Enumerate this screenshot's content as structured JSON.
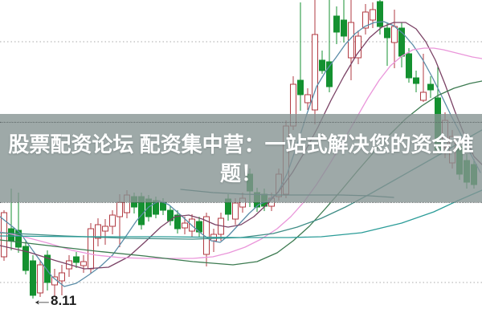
{
  "banner": {
    "lines": [
      "股票配资论坛 配资集中营：一站式解决您的资金难",
      "题！"
    ],
    "full_text": "股票配资论坛 配资集中营：一站式解决您的资金难题！",
    "text_color": "#ffffff",
    "bg_color": "rgba(134,148,146,0.80)"
  },
  "annotation": {
    "arrow": "←",
    "label": "8.11"
  },
  "chart_data": {
    "type": "candlestick",
    "title": "",
    "xlabel": "",
    "ylabel": "",
    "ylim": [
      7.83,
      11.83
    ],
    "grid": {
      "style": "dotted",
      "color": "#a8a8a8",
      "y_prices": [
        11.31,
        10.31,
        9.31,
        8.31
      ]
    },
    "low_annotation": {
      "price": 8.11,
      "candle_x": 41
    },
    "up_color": "#b23b43",
    "down_color": "#149130",
    "hollow_fill": "#ffffff",
    "candle_width": 7,
    "candle_format": [
      "x",
      "open",
      "high",
      "low",
      "close"
    ],
    "candles": [
      [
        5,
        8.63,
        9.21,
        8.58,
        9.18
      ],
      [
        14,
        8.98,
        9.48,
        8.71,
        8.83
      ],
      [
        23,
        8.96,
        9.43,
        8.68,
        8.75
      ],
      [
        32,
        8.76,
        8.83,
        8.41,
        8.46
      ],
      [
        41,
        8.58,
        8.65,
        8.11,
        8.15
      ],
      [
        50,
        8.18,
        8.58,
        8.13,
        8.53
      ],
      [
        59,
        8.65,
        8.71,
        8.21,
        8.31
      ],
      [
        68,
        8.28,
        8.48,
        8.13,
        8.38
      ],
      [
        77,
        8.33,
        8.53,
        8.15,
        8.43
      ],
      [
        86,
        8.48,
        8.65,
        8.38,
        8.58
      ],
      [
        95,
        8.63,
        8.69,
        8.49,
        8.56
      ],
      [
        104,
        8.52,
        8.65,
        8.43,
        8.57
      ],
      [
        113,
        8.48,
        9.05,
        8.42,
        8.98
      ],
      [
        122,
        8.86,
        9.11,
        8.76,
        9.03
      ],
      [
        131,
        8.95,
        9.1,
        8.78,
        9.01
      ],
      [
        140,
        9.01,
        9.21,
        8.91,
        9.15
      ],
      [
        149,
        9.13,
        9.41,
        8.75,
        9.31
      ],
      [
        158,
        9.18,
        9.46,
        9.11,
        9.4
      ],
      [
        167,
        9.38,
        9.43,
        9.17,
        9.25
      ],
      [
        176,
        9.38,
        9.43,
        8.97,
        9.03
      ],
      [
        185,
        9.35,
        9.4,
        9.07,
        9.13
      ],
      [
        194,
        9.33,
        9.38,
        9.11,
        9.16
      ],
      [
        203,
        9.31,
        9.36,
        9.15,
        9.21
      ],
      [
        212,
        9.21,
        9.27,
        9.02,
        9.08
      ],
      [
        221,
        9.15,
        9.21,
        8.92,
        8.98
      ],
      [
        230,
        8.99,
        9.13,
        8.91,
        9.05
      ],
      [
        239,
        8.95,
        9.16,
        8.88,
        9.1
      ],
      [
        248,
        9.07,
        9.13,
        8.88,
        8.94
      ],
      [
        257,
        8.66,
        9.18,
        8.51,
        9.13
      ],
      [
        266,
        8.83,
        8.98,
        8.69,
        8.91
      ],
      [
        275,
        8.91,
        9.18,
        8.83,
        9.11
      ],
      [
        284,
        9.35,
        9.41,
        9.08,
        9.16
      ],
      [
        293,
        9.1,
        9.36,
        9.03,
        9.3
      ],
      [
        302,
        9.25,
        9.43,
        9.18,
        9.36
      ],
      [
        311,
        9.66,
        9.73,
        9.25,
        9.45
      ],
      [
        320,
        9.43,
        9.49,
        9.19,
        9.25
      ],
      [
        329,
        9.41,
        9.48,
        9.2,
        9.26
      ],
      [
        338,
        9.26,
        9.43,
        9.2,
        9.36
      ],
      [
        347,
        9.38,
        9.73,
        9.33,
        9.66
      ],
      [
        356,
        9.41,
        10.33,
        9.36,
        10.26
      ],
      [
        365,
        10.26,
        10.88,
        10.21,
        10.78
      ],
      [
        374,
        10.83,
        11.8,
        10.45,
        10.65
      ],
      [
        383,
        10.55,
        10.73,
        10.46,
        10.65
      ],
      [
        392,
        10.46,
        11.83,
        10.28,
        11.4
      ],
      [
        401,
        11.08,
        11.2,
        10.91,
        10.95
      ],
      [
        410,
        11.06,
        11.83,
        10.68,
        10.75
      ],
      [
        419,
        11.63,
        11.75,
        11.28,
        11.43
      ],
      [
        428,
        11.58,
        11.83,
        11.3,
        11.38
      ],
      [
        437,
        11.11,
        11.83,
        10.83,
        11.55
      ],
      [
        446,
        11.11,
        11.45,
        11.03,
        11.38
      ],
      [
        455,
        11.48,
        11.78,
        11.4,
        11.68
      ],
      [
        464,
        11.58,
        11.8,
        11.48,
        11.71
      ],
      [
        473,
        11.81,
        11.83,
        11.4,
        11.5
      ],
      [
        482,
        11.48,
        11.55,
        11.01,
        11.36
      ],
      [
        491,
        11.3,
        11.71,
        10.98,
        11.5
      ],
      [
        500,
        11.48,
        11.55,
        10.99,
        11.13
      ],
      [
        509,
        11.16,
        11.23,
        10.8,
        10.86
      ],
      [
        518,
        10.86,
        10.95,
        10.68,
        10.79
      ],
      [
        527,
        10.58,
        11.16,
        10.56,
        10.68
      ],
      [
        536,
        10.78,
        10.88,
        10.61,
        10.71
      ],
      [
        545,
        10.61,
        11.0,
        9.91,
        9.96
      ],
      [
        554,
        10.0,
        10.43,
        9.86,
        10.33
      ],
      [
        563,
        9.8,
        10.21,
        9.73,
        10.13
      ],
      [
        572,
        10.0,
        10.07,
        9.59,
        9.66
      ],
      [
        581,
        9.83,
        9.91,
        9.48,
        9.56
      ],
      [
        590,
        9.78,
        9.85,
        9.48,
        9.53
      ]
    ],
    "ma_series": [
      {
        "name": "ma-steel-blue",
        "color": "#5b8da8",
        "points": [
          [
            0,
            9.13
          ],
          [
            25,
            8.93
          ],
          [
            45,
            8.65
          ],
          [
            65,
            8.38
          ],
          [
            80,
            8.26
          ],
          [
            95,
            8.3
          ],
          [
            110,
            8.4
          ],
          [
            125,
            8.51
          ],
          [
            140,
            8.65
          ],
          [
            155,
            8.86
          ],
          [
            170,
            9.08
          ],
          [
            185,
            9.25
          ],
          [
            198,
            9.33
          ],
          [
            210,
            9.28
          ],
          [
            225,
            9.15
          ],
          [
            240,
            9.01
          ],
          [
            252,
            8.91
          ],
          [
            263,
            8.83
          ],
          [
            274,
            8.81
          ],
          [
            285,
            8.9
          ],
          [
            297,
            9.03
          ],
          [
            310,
            9.17
          ],
          [
            322,
            9.28
          ],
          [
            334,
            9.33
          ],
          [
            346,
            9.43
          ],
          [
            358,
            9.68
          ],
          [
            370,
            10.03
          ],
          [
            382,
            10.41
          ],
          [
            394,
            10.75
          ],
          [
            406,
            10.95
          ],
          [
            418,
            11.11
          ],
          [
            430,
            11.28
          ],
          [
            442,
            11.41
          ],
          [
            454,
            11.5
          ],
          [
            466,
            11.55
          ],
          [
            478,
            11.56
          ],
          [
            490,
            11.51
          ],
          [
            502,
            11.41
          ],
          [
            514,
            11.27
          ],
          [
            526,
            11.09
          ],
          [
            538,
            10.87
          ],
          [
            550,
            10.63
          ],
          [
            562,
            10.38
          ],
          [
            574,
            10.15
          ],
          [
            586,
            9.91
          ],
          [
            598,
            9.68
          ]
        ]
      },
      {
        "name": "ma-maroon",
        "color": "#7a4265",
        "points": [
          [
            0,
            8.77
          ],
          [
            35,
            8.69
          ],
          [
            70,
            8.58
          ],
          [
            105,
            8.48
          ],
          [
            135,
            8.5
          ],
          [
            160,
            8.63
          ],
          [
            180,
            8.81
          ],
          [
            200,
            9.0
          ],
          [
            218,
            9.13
          ],
          [
            235,
            9.15
          ],
          [
            252,
            9.1
          ],
          [
            268,
            9.03
          ],
          [
            284,
            9.0
          ],
          [
            300,
            9.03
          ],
          [
            316,
            9.13
          ],
          [
            332,
            9.28
          ],
          [
            348,
            9.46
          ],
          [
            364,
            9.68
          ],
          [
            380,
            9.95
          ],
          [
            396,
            10.25
          ],
          [
            412,
            10.58
          ],
          [
            428,
            10.88
          ],
          [
            444,
            11.15
          ],
          [
            460,
            11.36
          ],
          [
            475,
            11.49
          ],
          [
            490,
            11.55
          ],
          [
            505,
            11.55
          ],
          [
            518,
            11.47
          ],
          [
            530,
            11.31
          ],
          [
            542,
            11.08
          ],
          [
            554,
            10.78
          ],
          [
            566,
            10.45
          ],
          [
            578,
            10.15
          ],
          [
            590,
            9.88
          ],
          [
            600,
            9.78
          ]
        ]
      },
      {
        "name": "ma-pink",
        "color": "#ea96da",
        "points": [
          [
            0,
            8.94
          ],
          [
            30,
            8.88
          ],
          [
            60,
            8.8
          ],
          [
            90,
            8.71
          ],
          [
            120,
            8.65
          ],
          [
            150,
            8.62
          ],
          [
            180,
            8.61
          ],
          [
            210,
            8.61
          ],
          [
            240,
            8.61
          ],
          [
            265,
            8.63
          ],
          [
            285,
            8.68
          ],
          [
            305,
            8.75
          ],
          [
            325,
            8.85
          ],
          [
            345,
            8.98
          ],
          [
            362,
            9.13
          ],
          [
            378,
            9.31
          ],
          [
            394,
            9.53
          ],
          [
            410,
            9.78
          ],
          [
            426,
            10.05
          ],
          [
            442,
            10.33
          ],
          [
            458,
            10.61
          ],
          [
            472,
            10.83
          ],
          [
            486,
            11.01
          ],
          [
            500,
            11.13
          ],
          [
            514,
            11.21
          ],
          [
            528,
            11.23
          ],
          [
            540,
            11.23
          ],
          [
            552,
            11.21
          ],
          [
            564,
            11.18
          ],
          [
            576,
            11.15
          ],
          [
            588,
            11.12
          ],
          [
            600,
            11.1
          ]
        ]
      },
      {
        "name": "ma-dark-green",
        "color": "#3c7a50",
        "points": [
          [
            0,
            8.84
          ],
          [
            60,
            8.77
          ],
          [
            120,
            8.7
          ],
          [
            180,
            8.64
          ],
          [
            240,
            8.57
          ],
          [
            290,
            8.53
          ],
          [
            320,
            8.57
          ],
          [
            345,
            8.68
          ],
          [
            365,
            8.83
          ],
          [
            385,
            9.01
          ],
          [
            405,
            9.23
          ],
          [
            425,
            9.46
          ],
          [
            445,
            9.7
          ],
          [
            465,
            9.93
          ],
          [
            485,
            10.15
          ],
          [
            505,
            10.35
          ],
          [
            525,
            10.51
          ],
          [
            545,
            10.64
          ],
          [
            565,
            10.73
          ],
          [
            585,
            10.79
          ],
          [
            600,
            10.82
          ]
        ]
      },
      {
        "name": "ma-teal-slow",
        "color": "#3f8d86",
        "points": [
          [
            0,
            8.93
          ],
          [
            80,
            8.89
          ],
          [
            160,
            8.86
          ],
          [
            240,
            8.85
          ],
          [
            300,
            8.87
          ],
          [
            340,
            8.92
          ],
          [
            370,
            9.0
          ],
          [
            400,
            9.11
          ],
          [
            430,
            9.25
          ],
          [
            460,
            9.41
          ],
          [
            490,
            9.58
          ],
          [
            520,
            9.75
          ],
          [
            550,
            9.92
          ],
          [
            575,
            10.07
          ],
          [
            600,
            10.21
          ]
        ]
      },
      {
        "name": "ma-bright-teal",
        "color": "#2b9c98",
        "points": [
          [
            0,
            8.89
          ],
          [
            100,
            8.88
          ],
          [
            200,
            8.88
          ],
          [
            300,
            8.87
          ],
          [
            360,
            8.87
          ],
          [
            400,
            8.88
          ],
          [
            450,
            8.93
          ],
          [
            500,
            9.05
          ],
          [
            540,
            9.19
          ],
          [
            570,
            9.33
          ],
          [
            600,
            9.46
          ]
        ]
      },
      {
        "name": "ma-dark-teal-flat",
        "color": "#2f6d6d",
        "points": [
          [
            225,
            9.47
          ],
          [
            265,
            9.43
          ],
          [
            305,
            9.41
          ],
          [
            345,
            9.4
          ],
          [
            385,
            9.4
          ],
          [
            425,
            9.4
          ],
          [
            460,
            9.39
          ],
          [
            490,
            9.37
          ]
        ]
      }
    ]
  }
}
